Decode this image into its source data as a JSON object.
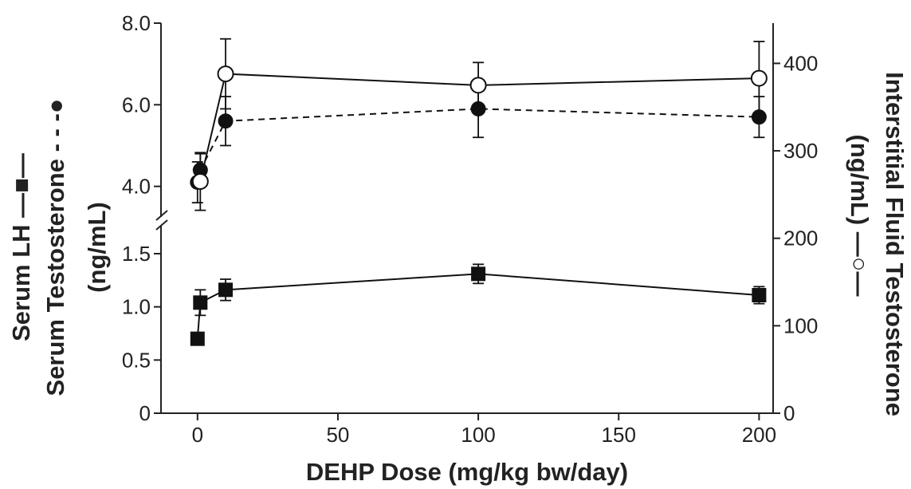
{
  "chart_data": {
    "type": "line",
    "xlabel": "DEHP Dose (mg/kg bw/day)",
    "ylabel_left_lines": [
      "Serum LH —■—",
      "Serum Testosterone - - -●",
      "(ng/mL)"
    ],
    "ylabel_right_lines": [
      "Interstitial Fluid Testosterone",
      "(ng/mL) —○—"
    ],
    "x_ticks": [
      0,
      50,
      100,
      150,
      200
    ],
    "x_tick_labels": [
      "0",
      "50",
      "100",
      "150",
      "200"
    ],
    "xlim": [
      -13,
      205
    ],
    "y_left_lower_ticks": [
      0,
      0.5,
      1.0,
      1.5
    ],
    "y_left_lower_tick_labels": [
      "0",
      "0.5",
      "1.0",
      "1.5"
    ],
    "y_left_lower_range": [
      0,
      1.77
    ],
    "y_left_upper_ticks": [
      4.0,
      6.0,
      8.0
    ],
    "y_left_upper_tick_labels": [
      "4.0",
      "6.0",
      "8.0"
    ],
    "y_left_upper_range": [
      3.25,
      8.0
    ],
    "y_right_ticks": [
      0,
      100,
      200,
      300,
      400
    ],
    "y_right_tick_labels": [
      "0",
      "100",
      "200",
      "300",
      "400"
    ],
    "y_right_range": [
      0,
      446
    ],
    "axis_break": "left axis between 1.5 and 4.0",
    "series": [
      {
        "name": "Serum LH",
        "axis": "left-lower",
        "marker": "filled-square",
        "line": "solid",
        "x": [
          0,
          1,
          10,
          100,
          200
        ],
        "y": [
          0.7,
          1.04,
          1.16,
          1.31,
          1.11
        ],
        "err": [
          0.05,
          0.12,
          0.1,
          0.09,
          0.08
        ]
      },
      {
        "name": "Serum Testosterone",
        "axis": "left-upper",
        "marker": "filled-circle",
        "line": "dashed",
        "x": [
          0,
          1,
          10,
          100,
          200
        ],
        "y": [
          4.1,
          4.4,
          5.6,
          5.9,
          5.7
        ],
        "err": [
          0.5,
          0.4,
          0.6,
          0.7,
          0.5
        ]
      },
      {
        "name": "Interstitial Fluid Testosterone",
        "axis": "right",
        "marker": "open-circle",
        "line": "solid",
        "x": [
          1,
          10,
          100,
          200
        ],
        "y": [
          265,
          388,
          375,
          383
        ],
        "err": [
          33,
          40,
          26,
          42
        ]
      }
    ]
  }
}
